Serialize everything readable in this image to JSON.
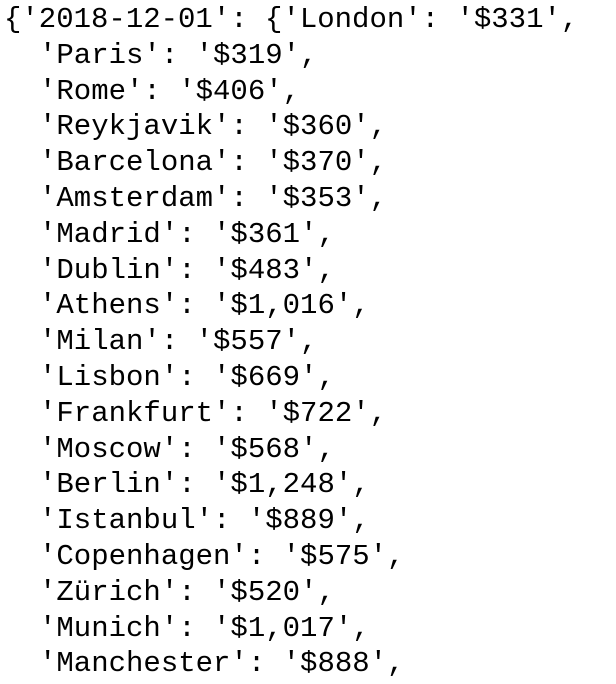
{
  "output": {
    "lines": [
      "{'2018-12-01': {'London': '$331',",
      "'Paris': '$319',",
      "'Rome': '$406',",
      "'Reykjavik': '$360',",
      "'Barcelona': '$370',",
      "'Amsterdam': '$353',",
      "'Madrid': '$361',",
      "'Dublin': '$483',",
      "'Athens': '$1,016',",
      "'Milan': '$557',",
      "'Lisbon': '$669',",
      "'Frankfurt': '$722',",
      "'Moscow': '$568',",
      "'Berlin': '$1,248',",
      "'Istanbul': '$889',",
      "'Copenhagen': '$575',",
      "'Zürich': '$520',",
      "'Munich': '$1,017',",
      "'Manchester': '$888',"
    ]
  }
}
